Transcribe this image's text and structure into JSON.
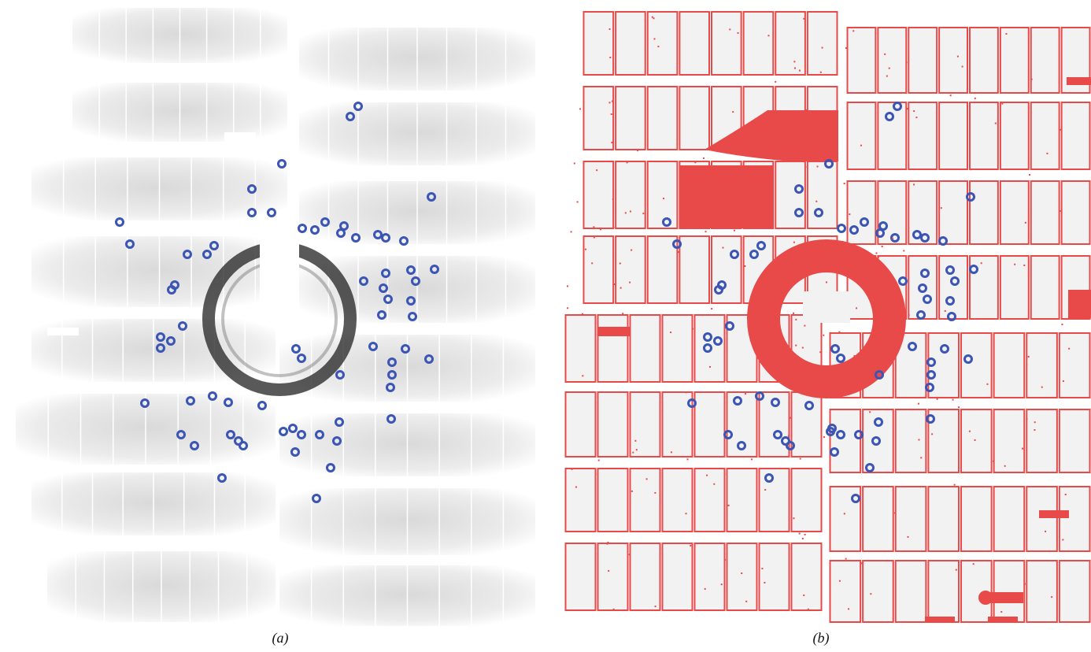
{
  "figure": {
    "panels": [
      {
        "id": "a",
        "label": "a",
        "caption": "(a)"
      },
      {
        "id": "b",
        "label": "b",
        "caption": "(b)"
      }
    ]
  },
  "colors": {
    "background": "#ffffff",
    "module_gray": "#e6e6e6",
    "ring": "#222222",
    "spot": "#3b55b4",
    "mask": "#e84a4a"
  }
}
